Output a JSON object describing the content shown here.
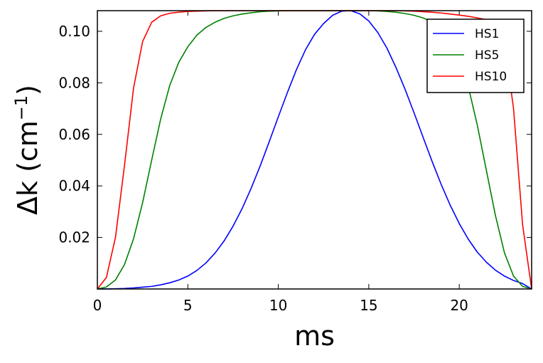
{
  "chart_data": {
    "type": "line",
    "title": "",
    "xlabel": "ms",
    "ylabel": "Δk (cm",
    "ylabel_sup": "−1",
    "ylabel_close": ")",
    "xlim": [
      0,
      24
    ],
    "ylim": [
      0,
      0.108
    ],
    "x_ticks": [
      0,
      5,
      10,
      15,
      20
    ],
    "x_tick_labels": [
      "0",
      "5",
      "10",
      "15",
      "20"
    ],
    "y_ticks": [
      0.02,
      0.04,
      0.06,
      0.08,
      0.1
    ],
    "y_tick_labels": [
      "0.02",
      "0.04",
      "0.06",
      "0.08",
      "0.10"
    ],
    "grid": false,
    "legend_position": "top-right",
    "x": [
      0,
      0.5,
      1,
      1.5,
      2,
      2.5,
      3,
      3.5,
      4,
      4.5,
      5,
      5.5,
      6,
      6.5,
      7,
      7.5,
      8,
      8.5,
      9,
      9.5,
      10,
      10.5,
      11,
      11.5,
      12,
      12.5,
      13,
      13.5,
      14,
      14.5,
      15,
      15.5,
      16,
      16.5,
      17,
      17.5,
      18,
      18.5,
      19,
      19.5,
      20,
      20.5,
      21,
      21.5,
      22,
      22.5,
      23,
      23.5,
      24
    ],
    "series": [
      {
        "name": "HS1",
        "color": "#0000ff",
        "values": [
          0.0,
          2e-05,
          0.0001,
          0.0002,
          0.0004,
          0.0007,
          0.001,
          0.0016,
          0.0024,
          0.0035,
          0.005,
          0.0072,
          0.0101,
          0.0139,
          0.0186,
          0.0244,
          0.0312,
          0.0391,
          0.0478,
          0.0572,
          0.0668,
          0.0762,
          0.0851,
          0.0928,
          0.0988,
          0.103,
          0.1062,
          0.1078,
          0.108,
          0.1068,
          0.104,
          0.0995,
          0.0935,
          0.086,
          0.0776,
          0.0684,
          0.0589,
          0.0495,
          0.0406,
          0.0325,
          0.0254,
          0.0193,
          0.0143,
          0.0104,
          0.0073,
          0.005,
          0.0033,
          0.0021,
          0.0
        ]
      },
      {
        "name": "HS5",
        "color": "#008000",
        "values": [
          0.0,
          0.0008,
          0.0035,
          0.0095,
          0.0195,
          0.0335,
          0.05,
          0.066,
          0.079,
          0.088,
          0.094,
          0.0985,
          0.1015,
          0.1035,
          0.105,
          0.106,
          0.1067,
          0.1072,
          0.1076,
          0.1078,
          0.1079,
          0.108,
          0.108,
          0.108,
          0.108,
          0.108,
          0.108,
          0.108,
          0.108,
          0.108,
          0.108,
          0.1079,
          0.1077,
          0.1074,
          0.1069,
          0.1062,
          0.1052,
          0.1036,
          0.101,
          0.0967,
          0.0895,
          0.0785,
          0.0635,
          0.046,
          0.0285,
          0.014,
          0.005,
          0.001,
          0.0
        ]
      },
      {
        "name": "HS10",
        "color": "#ff0000",
        "values": [
          0.0,
          0.0045,
          0.02,
          0.048,
          0.078,
          0.096,
          0.1035,
          0.106,
          0.107,
          0.1074,
          0.1077,
          0.1078,
          0.1079,
          0.108,
          0.108,
          0.108,
          0.108,
          0.108,
          0.108,
          0.108,
          0.108,
          0.108,
          0.108,
          0.108,
          0.108,
          0.108,
          0.108,
          0.108,
          0.108,
          0.108,
          0.108,
          0.108,
          0.108,
          0.108,
          0.1079,
          0.1078,
          0.1076,
          0.1074,
          0.1071,
          0.1067,
          0.1063,
          0.1058,
          0.1052,
          0.1045,
          0.103,
          0.096,
          0.07,
          0.025,
          0.0
        ]
      }
    ]
  }
}
